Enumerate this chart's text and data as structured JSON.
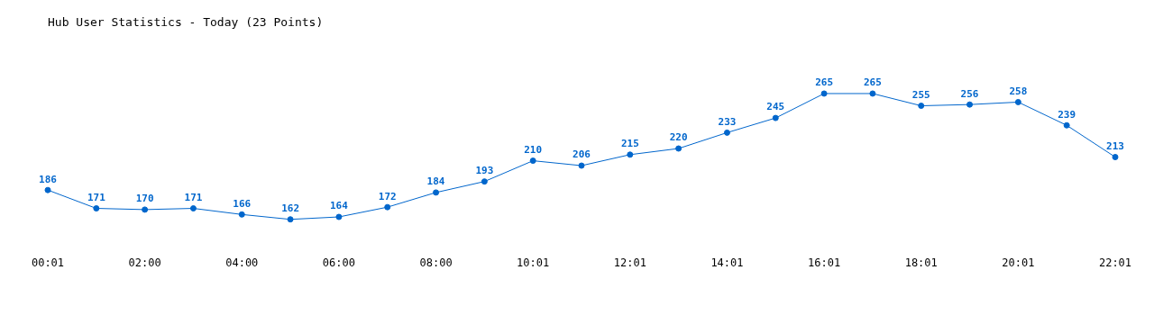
{
  "chart_data": {
    "type": "line",
    "title": "Hub User Statistics - Today (23 Points)",
    "categories": [
      "00:01",
      null,
      "02:00",
      null,
      "04:00",
      null,
      "06:00",
      null,
      "08:00",
      null,
      "10:01",
      null,
      "12:01",
      null,
      "14:01",
      null,
      "16:01",
      null,
      "18:01",
      null,
      "20:01",
      null,
      "22:01"
    ],
    "series": [
      {
        "color": "#0066cc",
        "values": [
          186,
          171,
          170,
          171,
          166,
          162,
          164,
          172,
          184,
          193,
          210,
          206,
          215,
          220,
          233,
          245,
          265,
          265,
          255,
          256,
          258,
          239,
          213
        ]
      }
    ],
    "data_labels": true,
    "marker": "circle",
    "grid": false,
    "legend": false
  }
}
